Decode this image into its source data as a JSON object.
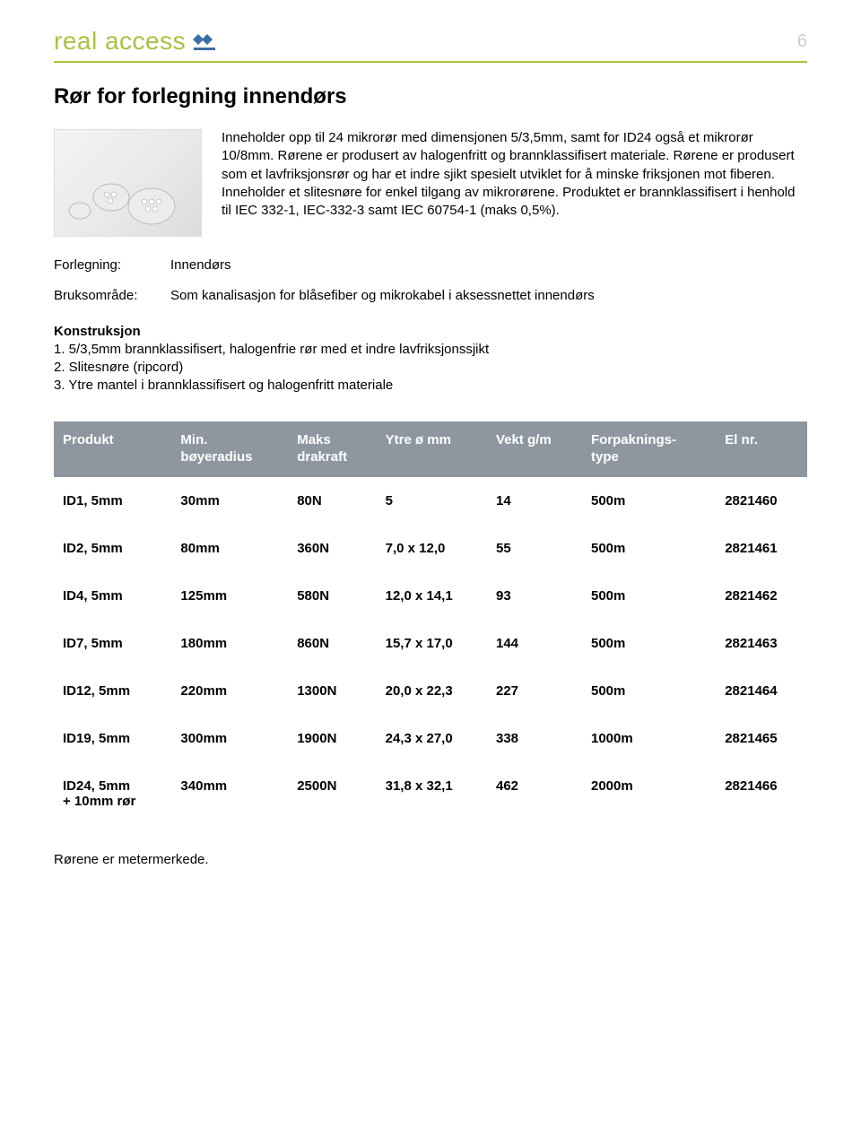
{
  "header": {
    "logo_text": "real access",
    "logo_color": "#a9c23f",
    "logo_mark_color": "#3a6ea5",
    "page_number": "6",
    "page_number_color": "#cccccc",
    "divider_color": "#a9c23f"
  },
  "title": "Rør for forlegning innendørs",
  "intro_text": "Inneholder opp til 24 mikrorør med dimensjonen 5/3,5mm, samt for ID24 også et mikrorør 10/8mm. Rørene er produsert av halogenfritt og brannklassifisert materiale. Rørene er produsert som et lavfriksjonsrør og har et indre sjikt spesielt utviklet for å minske friksjonen mot fiberen. Inneholder et slitesnøre for enkel tilgang av mikrorørene. Produktet er brannklassifisert i henhold til IEC 332-1, IEC-332-3 samt IEC 60754-1 (maks 0,5%).",
  "meta": {
    "forlegning_label": "Forlegning:",
    "forlegning_value": "Innendørs",
    "bruksomrade_label": "Bruksområde:",
    "bruksomrade_value": "Som kanalisasjon for blåsefiber og mikrokabel i aksessnettet innendørs"
  },
  "construction": {
    "heading": "Konstruksjon",
    "item1": "1. 5/3,5mm brannklassifisert, halogenfrie rør med et indre lavfriksjonssjikt",
    "item2": "2. Slitesnøre (ripcord)",
    "item3": "3. Ytre mantel i brannklassifisert og halogenfritt materiale"
  },
  "table": {
    "header_bg": "#8e97a0",
    "header_fg": "#ffffff",
    "columns": {
      "c0_l1": "Produkt",
      "c1_l1": "Min.",
      "c1_l2": "bøyeradius",
      "c2_l1": "Maks",
      "c2_l2": "drakraft",
      "c3_l1": "Ytre ø mm",
      "c4_l1": "Vekt g/m",
      "c5_l1": "Forpaknings-",
      "c5_l2": "type",
      "c6_l1": "El nr."
    },
    "rows": [
      {
        "c0": "ID1, 5mm",
        "c0b": "",
        "c1": "30mm",
        "c2": "80N",
        "c3": "5",
        "c4": "14",
        "c5": "500m",
        "c6": "2821460"
      },
      {
        "c0": "ID2, 5mm",
        "c0b": "",
        "c1": "80mm",
        "c2": "360N",
        "c3": "7,0 x 12,0",
        "c4": "55",
        "c5": "500m",
        "c6": "2821461"
      },
      {
        "c0": "ID4, 5mm",
        "c0b": "",
        "c1": "125mm",
        "c2": "580N",
        "c3": "12,0 x 14,1",
        "c4": "93",
        "c5": "500m",
        "c6": "2821462"
      },
      {
        "c0": "ID7, 5mm",
        "c0b": "",
        "c1": "180mm",
        "c2": "860N",
        "c3": "15,7 x 17,0",
        "c4": "144",
        "c5": "500m",
        "c6": "2821463"
      },
      {
        "c0": "ID12, 5mm",
        "c0b": "",
        "c1": "220mm",
        "c2": "1300N",
        "c3": "20,0 x 22,3",
        "c4": "227",
        "c5": "500m",
        "c6": "2821464"
      },
      {
        "c0": "ID19, 5mm",
        "c0b": "",
        "c1": "300mm",
        "c2": "1900N",
        "c3": "24,3 x 27,0",
        "c4": "338",
        "c5": "1000m",
        "c6": "2821465"
      },
      {
        "c0": "ID24, 5mm",
        "c0b": "+ 10mm rør",
        "c1": "340mm",
        "c2": "2500N",
        "c3": "31,8 x 32,1",
        "c4": "462",
        "c5": "2000m",
        "c6": "2821466"
      }
    ]
  },
  "footer_note": "Rørene er metermerkede."
}
